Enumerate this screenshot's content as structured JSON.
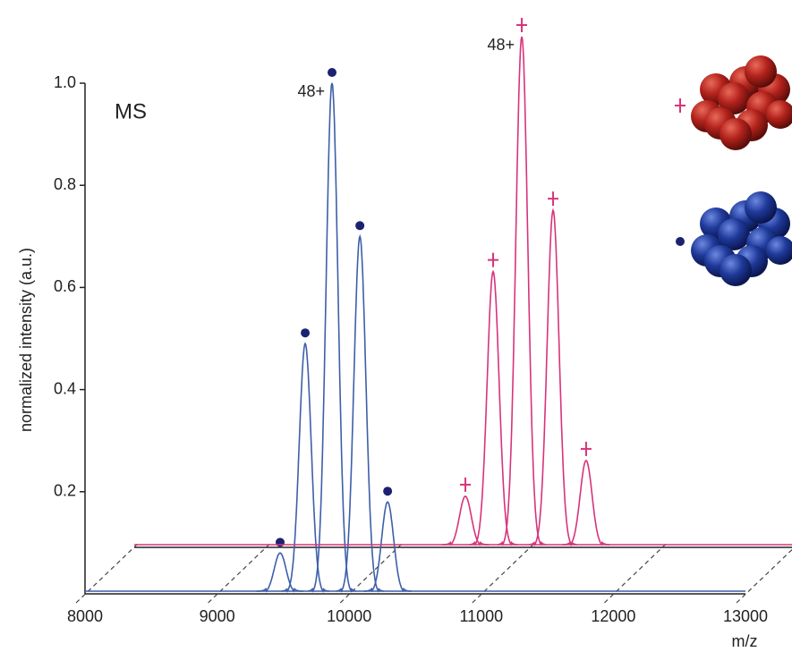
{
  "chart_data": {
    "type": "waterfall-spectrum",
    "title": "MS",
    "y_label": "normalized intensity (a.u.)",
    "x_label": "m/z",
    "xlim": [
      8000,
      13000
    ],
    "xticks": [
      8000,
      9000,
      10000,
      11000,
      12000,
      13000
    ],
    "ylim": [
      0,
      1
    ],
    "yticks": [
      0.2,
      0.4,
      0.6,
      0.8,
      {
        "value": 1,
        "label": "1.0"
      }
    ],
    "annotations": [
      "48+",
      "48+"
    ],
    "series": [
      {
        "color": "#3d5fa8",
        "marker": "dot",
        "marker_color": "#1c2270",
        "x": [
          9477,
          9667,
          9870,
          10081,
          10291
        ],
        "values": [
          0.08,
          0.49,
          1.0,
          0.7,
          0.18
        ]
      },
      {
        "color": "#d8337a",
        "marker": "cross",
        "marker_color": "#d8337a",
        "x": [
          10507,
          10717,
          10934,
          11171,
          11421
        ],
        "values": [
          0.1,
          0.54,
          1.0,
          0.66,
          0.17
        ]
      }
    ]
  }
}
